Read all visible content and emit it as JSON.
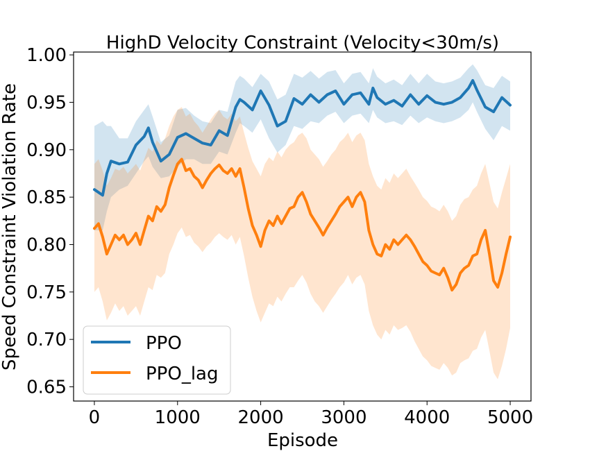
{
  "chart_data": {
    "type": "line",
    "title": "HighD Velocity Constraint (Velocity<30m/s)",
    "xlabel": "Episode",
    "ylabel": "Speed Constraint Violation Rate",
    "xlim": [
      -250,
      5250
    ],
    "ylim": [
      0.635,
      1.003
    ],
    "xticks": [
      0,
      1000,
      2000,
      3000,
      4000,
      5000
    ],
    "xtick_labels": [
      "0",
      "1000",
      "2000",
      "3000",
      "4000",
      "5000"
    ],
    "yticks": [
      0.65,
      0.7,
      0.75,
      0.8,
      0.85,
      0.9,
      0.95,
      1.0
    ],
    "ytick_labels": [
      "0.65",
      "0.70",
      "0.75",
      "0.80",
      "0.85",
      "0.90",
      "0.95",
      "1.00"
    ],
    "legend_position": "lower-left",
    "series": [
      {
        "name": "PPO",
        "color": "#1f77b4",
        "x": [
          0,
          100,
          150,
          200,
          300,
          400,
          500,
          600,
          650,
          700,
          800,
          900,
          1000,
          1100,
          1200,
          1300,
          1400,
          1500,
          1600,
          1700,
          1750,
          1800,
          1900,
          2000,
          2100,
          2200,
          2300,
          2400,
          2500,
          2600,
          2700,
          2800,
          2900,
          3000,
          3100,
          3200,
          3300,
          3350,
          3400,
          3500,
          3600,
          3700,
          3800,
          3900,
          4000,
          4100,
          4200,
          4300,
          4400,
          4500,
          4550,
          4600,
          4700,
          4800,
          4900,
          5000
        ],
        "values": [
          0.858,
          0.852,
          0.875,
          0.888,
          0.885,
          0.887,
          0.905,
          0.914,
          0.923,
          0.908,
          0.888,
          0.895,
          0.913,
          0.917,
          0.912,
          0.907,
          0.905,
          0.92,
          0.915,
          0.945,
          0.953,
          0.95,
          0.942,
          0.962,
          0.947,
          0.925,
          0.93,
          0.954,
          0.948,
          0.958,
          0.95,
          0.958,
          0.962,
          0.948,
          0.958,
          0.96,
          0.948,
          0.965,
          0.955,
          0.948,
          0.952,
          0.946,
          0.958,
          0.948,
          0.957,
          0.95,
          0.948,
          0.95,
          0.955,
          0.965,
          0.973,
          0.963,
          0.945,
          0.94,
          0.955,
          0.947
        ],
        "band_lower": [
          0.815,
          0.815,
          0.835,
          0.85,
          0.858,
          0.862,
          0.875,
          0.888,
          0.893,
          0.882,
          0.87,
          0.872,
          0.882,
          0.89,
          0.89,
          0.885,
          0.885,
          0.898,
          0.895,
          0.918,
          0.928,
          0.925,
          0.918,
          0.932,
          0.912,
          0.897,
          0.905,
          0.925,
          0.922,
          0.93,
          0.928,
          0.936,
          0.94,
          0.928,
          0.936,
          0.938,
          0.928,
          0.942,
          0.934,
          0.928,
          0.93,
          0.926,
          0.936,
          0.928,
          0.934,
          0.93,
          0.928,
          0.93,
          0.934,
          0.942,
          0.95,
          0.94,
          0.922,
          0.91,
          0.925,
          0.92
        ],
        "band_upper": [
          0.925,
          0.93,
          0.925,
          0.925,
          0.912,
          0.912,
          0.93,
          0.942,
          0.948,
          0.935,
          0.908,
          0.915,
          0.942,
          0.944,
          0.936,
          0.93,
          0.928,
          0.942,
          0.94,
          0.972,
          0.978,
          0.975,
          0.966,
          0.98,
          0.972,
          0.953,
          0.958,
          0.98,
          0.976,
          0.983,
          0.975,
          0.982,
          0.984,
          0.97,
          0.98,
          0.982,
          0.97,
          0.986,
          0.977,
          0.97,
          0.974,
          0.968,
          0.98,
          0.97,
          0.98,
          0.972,
          0.97,
          0.972,
          0.976,
          0.986,
          0.99,
          0.984,
          0.968,
          0.965,
          0.978,
          0.972
        ]
      },
      {
        "name": "PPO_lag",
        "color": "#ff7f0e",
        "x": [
          0,
          50,
          100,
          150,
          200,
          250,
          300,
          350,
          400,
          450,
          500,
          550,
          600,
          650,
          700,
          750,
          800,
          850,
          900,
          950,
          1000,
          1050,
          1100,
          1150,
          1200,
          1250,
          1300,
          1350,
          1400,
          1450,
          1500,
          1550,
          1600,
          1650,
          1700,
          1750,
          1800,
          1850,
          1900,
          1950,
          2000,
          2050,
          2100,
          2150,
          2200,
          2250,
          2300,
          2350,
          2400,
          2450,
          2500,
          2550,
          2600,
          2650,
          2700,
          2750,
          2800,
          2850,
          2900,
          2950,
          3000,
          3050,
          3100,
          3150,
          3200,
          3250,
          3300,
          3350,
          3400,
          3450,
          3500,
          3550,
          3600,
          3650,
          3700,
          3750,
          3800,
          3850,
          3900,
          3950,
          4000,
          4050,
          4100,
          4150,
          4200,
          4250,
          4300,
          4350,
          4400,
          4450,
          4500,
          4550,
          4600,
          4650,
          4700,
          4750,
          4800,
          4850,
          4900,
          4950,
          5000
        ],
        "values": [
          0.817,
          0.822,
          0.808,
          0.79,
          0.8,
          0.81,
          0.805,
          0.81,
          0.8,
          0.805,
          0.812,
          0.8,
          0.815,
          0.83,
          0.825,
          0.84,
          0.835,
          0.842,
          0.86,
          0.873,
          0.885,
          0.89,
          0.878,
          0.88,
          0.872,
          0.868,
          0.86,
          0.868,
          0.875,
          0.88,
          0.884,
          0.878,
          0.875,
          0.88,
          0.872,
          0.88,
          0.86,
          0.838,
          0.82,
          0.81,
          0.798,
          0.815,
          0.825,
          0.82,
          0.83,
          0.822,
          0.83,
          0.838,
          0.84,
          0.85,
          0.855,
          0.845,
          0.832,
          0.825,
          0.818,
          0.81,
          0.818,
          0.825,
          0.832,
          0.84,
          0.845,
          0.85,
          0.84,
          0.85,
          0.855,
          0.845,
          0.815,
          0.8,
          0.79,
          0.788,
          0.8,
          0.795,
          0.805,
          0.8,
          0.805,
          0.81,
          0.805,
          0.798,
          0.79,
          0.782,
          0.778,
          0.772,
          0.77,
          0.768,
          0.775,
          0.765,
          0.752,
          0.758,
          0.77,
          0.775,
          0.778,
          0.788,
          0.79,
          0.805,
          0.815,
          0.79,
          0.762,
          0.755,
          0.77,
          0.79,
          0.808
        ],
        "band_lower": [
          0.75,
          0.755,
          0.74,
          0.72,
          0.728,
          0.738,
          0.73,
          0.735,
          0.725,
          0.73,
          0.735,
          0.725,
          0.74,
          0.755,
          0.752,
          0.768,
          0.765,
          0.77,
          0.79,
          0.8,
          0.812,
          0.818,
          0.808,
          0.81,
          0.802,
          0.798,
          0.792,
          0.798,
          0.802,
          0.808,
          0.812,
          0.808,
          0.805,
          0.81,
          0.8,
          0.808,
          0.788,
          0.765,
          0.745,
          0.73,
          0.718,
          0.728,
          0.738,
          0.735,
          0.745,
          0.74,
          0.748,
          0.755,
          0.755,
          0.762,
          0.768,
          0.76,
          0.748,
          0.74,
          0.735,
          0.728,
          0.735,
          0.742,
          0.748,
          0.755,
          0.76,
          0.768,
          0.758,
          0.765,
          0.768,
          0.758,
          0.73,
          0.715,
          0.705,
          0.7,
          0.71,
          0.705,
          0.715,
          0.71,
          0.712,
          0.715,
          0.708,
          0.698,
          0.69,
          0.682,
          0.678,
          0.672,
          0.67,
          0.668,
          0.675,
          0.67,
          0.662,
          0.665,
          0.675,
          0.678,
          0.68,
          0.688,
          0.69,
          0.702,
          0.71,
          0.688,
          0.665,
          0.658,
          0.672,
          0.69,
          0.712
        ],
        "band_upper": [
          0.885,
          0.89,
          0.878,
          0.862,
          0.87,
          0.88,
          0.878,
          0.882,
          0.875,
          0.88,
          0.885,
          0.878,
          0.89,
          0.902,
          0.898,
          0.91,
          0.905,
          0.912,
          0.925,
          0.935,
          0.942,
          0.945,
          0.935,
          0.938,
          0.93,
          0.925,
          0.918,
          0.925,
          0.932,
          0.938,
          0.942,
          0.935,
          0.932,
          0.938,
          0.93,
          0.935,
          0.918,
          0.902,
          0.888,
          0.88,
          0.872,
          0.885,
          0.892,
          0.888,
          0.898,
          0.892,
          0.9,
          0.905,
          0.908,
          0.915,
          0.918,
          0.912,
          0.9,
          0.895,
          0.89,
          0.882,
          0.888,
          0.895,
          0.9,
          0.908,
          0.912,
          0.918,
          0.908,
          0.915,
          0.918,
          0.91,
          0.885,
          0.872,
          0.862,
          0.858,
          0.87,
          0.865,
          0.875,
          0.87,
          0.875,
          0.88,
          0.872,
          0.865,
          0.858,
          0.85,
          0.846,
          0.84,
          0.838,
          0.835,
          0.842,
          0.835,
          0.825,
          0.83,
          0.842,
          0.848,
          0.85,
          0.858,
          0.862,
          0.875,
          0.885,
          0.865,
          0.845,
          0.838,
          0.855,
          0.87,
          0.885
        ]
      }
    ]
  }
}
